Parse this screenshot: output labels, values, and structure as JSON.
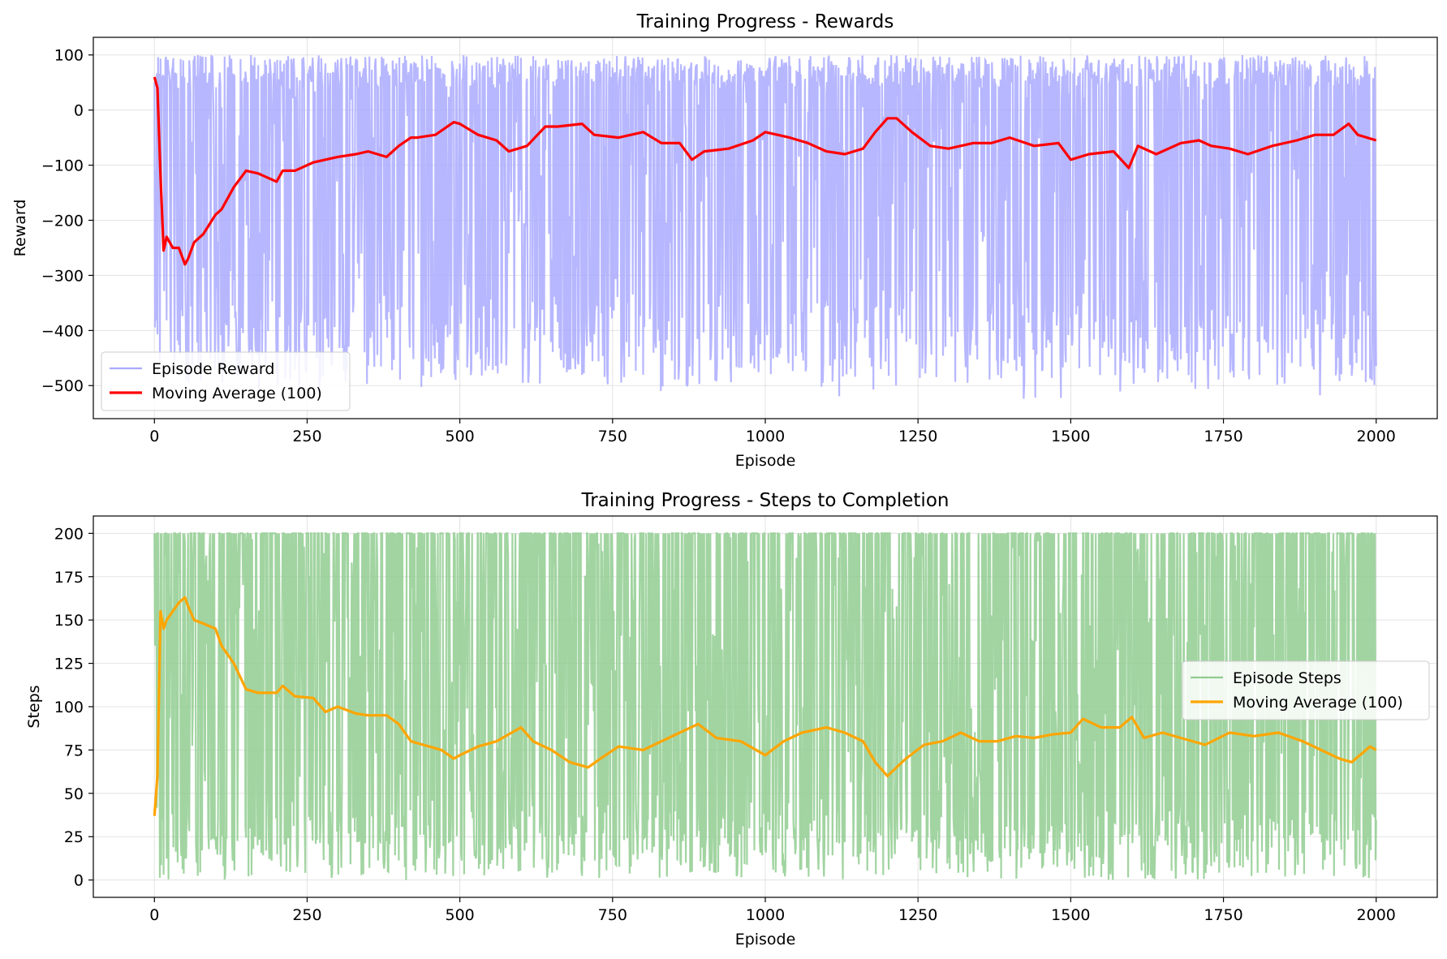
{
  "chart_data": [
    {
      "type": "line",
      "title": "Training Progress - Rewards",
      "xlabel": "Episode",
      "ylabel": "Reward",
      "xlim": [
        -100,
        2100
      ],
      "ylim": [
        -560,
        132
      ],
      "xticks": [
        0,
        250,
        500,
        750,
        1000,
        1250,
        1500,
        1750,
        2000
      ],
      "yticks": [
        100,
        0,
        -100,
        -200,
        -300,
        -400,
        -500
      ],
      "ytick_labels": [
        "100",
        "0",
        "−100",
        "−200",
        "−300",
        "−400",
        "−500"
      ],
      "grid": true,
      "legend_position": "lower-left",
      "series": [
        {
          "name": "Episode Reward",
          "color": "#aaaaff",
          "kind": "noisy",
          "seed": 17,
          "x_range": [
            0,
            2000
          ],
          "y_range": [
            -525,
            100
          ],
          "cap": 100
        },
        {
          "name": "Moving Average (100)",
          "color": "#ff0000",
          "kind": "line",
          "x": [
            0,
            5,
            10,
            15,
            20,
            25,
            30,
            40,
            50,
            55,
            65,
            80,
            100,
            110,
            130,
            150,
            170,
            200,
            210,
            230,
            260,
            280,
            300,
            330,
            350,
            380,
            400,
            420,
            430,
            460,
            490,
            500,
            530,
            560,
            580,
            610,
            640,
            660,
            700,
            720,
            760,
            800,
            830,
            860,
            880,
            900,
            940,
            980,
            1000,
            1040,
            1070,
            1100,
            1130,
            1160,
            1180,
            1200,
            1215,
            1240,
            1270,
            1300,
            1340,
            1370,
            1400,
            1440,
            1480,
            1500,
            1530,
            1570,
            1595,
            1610,
            1640,
            1680,
            1710,
            1730,
            1760,
            1790,
            1830,
            1870,
            1900,
            1930,
            1955,
            1970,
            2000
          ],
          "y": [
            60,
            40,
            -120,
            -255,
            -230,
            -240,
            -250,
            -250,
            -280,
            -270,
            -240,
            -225,
            -190,
            -180,
            -140,
            -110,
            -115,
            -130,
            -110,
            -110,
            -95,
            -90,
            -85,
            -80,
            -75,
            -85,
            -65,
            -50,
            -50,
            -45,
            -22,
            -25,
            -45,
            -55,
            -75,
            -65,
            -30,
            -30,
            -25,
            -45,
            -50,
            -40,
            -60,
            -60,
            -90,
            -75,
            -70,
            -55,
            -40,
            -50,
            -60,
            -75,
            -80,
            -70,
            -40,
            -15,
            -15,
            -40,
            -65,
            -70,
            -60,
            -60,
            -50,
            -65,
            -60,
            -90,
            -80,
            -75,
            -105,
            -65,
            -80,
            -60,
            -55,
            -65,
            -70,
            -80,
            -65,
            -55,
            -45,
            -45,
            -25,
            -45,
            -55
          ]
        }
      ]
    },
    {
      "type": "line",
      "title": "Training Progress - Steps to Completion",
      "xlabel": "Episode",
      "ylabel": "Steps",
      "xlim": [
        -100,
        2100
      ],
      "ylim": [
        -10,
        210
      ],
      "xticks": [
        0,
        250,
        500,
        750,
        1000,
        1250,
        1500,
        1750,
        2000
      ],
      "yticks": [
        0,
        25,
        50,
        75,
        100,
        125,
        150,
        175,
        200
      ],
      "ytick_labels": [
        "0",
        "25",
        "50",
        "75",
        "100",
        "125",
        "150",
        "175",
        "200"
      ],
      "grid": true,
      "legend_position": "center-right",
      "series": [
        {
          "name": "Episode Steps",
          "color": "#90cc90",
          "kind": "noisy",
          "seed": 29,
          "x_range": [
            0,
            2000
          ],
          "y_range": [
            0,
            200
          ],
          "cap": 200
        },
        {
          "name": "Moving Average (100)",
          "color": "#ffa500",
          "kind": "line",
          "x": [
            0,
            5,
            10,
            15,
            20,
            30,
            40,
            50,
            55,
            65,
            80,
            100,
            110,
            130,
            150,
            170,
            200,
            210,
            230,
            260,
            280,
            300,
            330,
            350,
            380,
            400,
            420,
            440,
            470,
            490,
            500,
            530,
            560,
            600,
            620,
            650,
            680,
            710,
            730,
            760,
            800,
            830,
            860,
            890,
            920,
            960,
            1000,
            1030,
            1060,
            1100,
            1130,
            1160,
            1180,
            1200,
            1230,
            1260,
            1290,
            1320,
            1350,
            1380,
            1410,
            1440,
            1470,
            1500,
            1520,
            1550,
            1580,
            1600,
            1620,
            1650,
            1680,
            1720,
            1760,
            1800,
            1840,
            1880,
            1910,
            1940,
            1960,
            1990,
            2000
          ],
          "y": [
            37,
            60,
            155,
            145,
            150,
            155,
            160,
            163,
            158,
            150,
            148,
            145,
            135,
            125,
            110,
            108,
            108,
            112,
            106,
            105,
            97,
            100,
            96,
            95,
            95,
            90,
            80,
            78,
            75,
            70,
            72,
            77,
            80,
            88,
            80,
            75,
            68,
            65,
            70,
            77,
            75,
            80,
            85,
            90,
            82,
            80,
            72,
            80,
            85,
            88,
            85,
            80,
            68,
            60,
            70,
            78,
            80,
            85,
            80,
            80,
            83,
            82,
            84,
            85,
            93,
            88,
            88,
            94,
            82,
            85,
            82,
            78,
            85,
            83,
            85,
            80,
            75,
            70,
            68,
            77,
            75
          ]
        }
      ]
    }
  ]
}
